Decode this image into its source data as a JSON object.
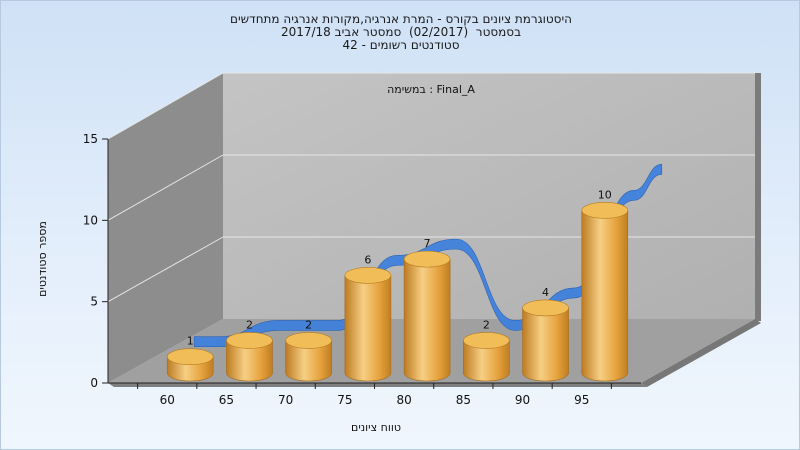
{
  "titles": {
    "line1": "היסטוגרמת ציונים בקורס - המרת אנרגיה,מקורות אנרגיה מתחדשים",
    "line2": "בסמסטר  (02/2017)  סמסטר אביב 2017/18",
    "line3": "סטודנטים רשומים - 42"
  },
  "chart_data": {
    "type": "bar",
    "series_title": "במשימה : Final_A",
    "xlabel": "טווח ציונים",
    "ylabel": "מספר סטודנטים",
    "categories": [
      "60",
      "65",
      "70",
      "75",
      "80",
      "85",
      "90",
      "95"
    ],
    "values": [
      1,
      2,
      2,
      6,
      7,
      2,
      4,
      10
    ],
    "ylim": [
      0,
      15
    ],
    "yticks": [
      0,
      5,
      10,
      15
    ],
    "grid": true,
    "bar_style": "3d-cylinder",
    "trend_ribbon": true,
    "colors": {
      "bar": "#e8a63a",
      "bar_light": "#f8d998",
      "bar_dark": "#b3741c",
      "ribbon": "#3f7fdb",
      "back_wall": "#b8b8b8",
      "left_wall": "#8f8f8f",
      "floor": "#9c9c9c"
    }
  }
}
